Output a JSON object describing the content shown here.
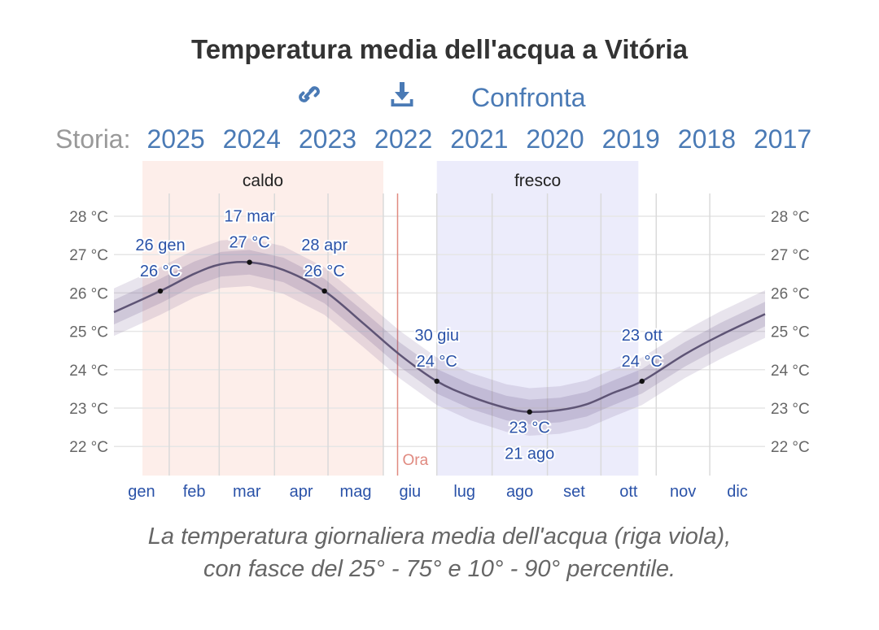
{
  "title": "Temperatura media dell'acqua a Vitória",
  "toolbar": {
    "link_icon": "link-icon",
    "download_icon": "download-icon",
    "compare": "Confronta"
  },
  "history": {
    "label": "Storia:",
    "years": [
      "2025",
      "2024",
      "2023",
      "2022",
      "2021",
      "2020",
      "2019",
      "2018",
      "2017"
    ]
  },
  "caption": [
    "La temperatura giornaliera media dell'acqua (riga viola),",
    "con fasce del 25° - 75° e 10° - 90° percentile."
  ],
  "colors": {
    "line": "#5e5475",
    "warm": "#fdeeea",
    "cool": "#ececfb",
    "now": "#e08a80",
    "label": "#2a52a8"
  },
  "chart_data": {
    "type": "line",
    "title": "Temperatura media dell'acqua a Vitória",
    "ylim": [
      21.3,
      29.8
    ],
    "yticks": [
      22,
      23,
      24,
      25,
      26,
      27,
      28
    ],
    "ytick_labels": [
      "22 °C",
      "23 °C",
      "24 °C",
      "25 °C",
      "26 °C",
      "27 °C",
      "28 °C"
    ],
    "months": [
      "gen",
      "feb",
      "mar",
      "apr",
      "mag",
      "giu",
      "lug",
      "ago",
      "set",
      "ott",
      "nov",
      "dic"
    ],
    "month_starts": [
      0,
      31,
      59,
      90,
      120,
      151,
      181,
      212,
      243,
      273,
      304,
      334,
      365
    ],
    "bands": [
      {
        "label": "caldo",
        "from": 16,
        "to": 151
      },
      {
        "label": "fresco",
        "from": 181,
        "to": 294
      }
    ],
    "now": {
      "label": "Ora",
      "day": 159
    },
    "x_days": [
      0,
      26,
      45,
      60,
      76,
      95,
      118,
      140,
      160,
      181,
      200,
      220,
      233,
      250,
      265,
      280,
      296,
      320,
      340,
      365
    ],
    "mean": [
      25.5,
      26.05,
      26.5,
      26.75,
      26.8,
      26.6,
      26.05,
      25.2,
      24.4,
      23.7,
      23.3,
      23.0,
      22.9,
      22.95,
      23.1,
      23.4,
      23.7,
      24.4,
      24.9,
      25.45
    ],
    "p25_offset": 0.32,
    "p10_offset": 0.62,
    "annotations": [
      {
        "day": 26,
        "temp": 26.05,
        "date": "26 gen",
        "value": "26 °C",
        "pos": "above"
      },
      {
        "day": 76,
        "temp": 26.8,
        "date": "17 mar",
        "value": "27 °C",
        "pos": "above"
      },
      {
        "day": 118,
        "temp": 26.05,
        "date": "28 apr",
        "value": "26 °C",
        "pos": "above"
      },
      {
        "day": 181,
        "temp": 23.7,
        "date": "30 giu",
        "value": "24 °C",
        "pos": "above"
      },
      {
        "day": 233,
        "temp": 22.9,
        "date": "21 ago",
        "value": "23 °C",
        "pos": "below"
      },
      {
        "day": 296,
        "temp": 23.7,
        "date": "23 ott",
        "value": "24 °C",
        "pos": "above"
      }
    ]
  }
}
